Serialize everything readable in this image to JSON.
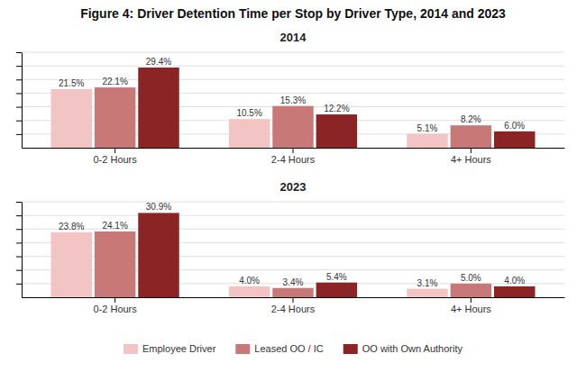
{
  "title": "Figure 4: Driver Detention Time per Stop by Driver Type, 2014 and 2023",
  "chart_data": [
    {
      "type": "bar",
      "title": "2014",
      "categories": [
        "0-2 Hours",
        "2-4 Hours",
        "4+ Hours"
      ],
      "series": [
        {
          "name": "Employee Driver",
          "color": "#f2c4c4",
          "values": [
            21.5,
            10.5,
            5.1
          ],
          "value_labels": [
            "21.5%",
            "10.5%",
            "5.1%"
          ]
        },
        {
          "name": "Leased OO / IC",
          "color": "#c97878",
          "values": [
            22.1,
            15.3,
            8.2
          ],
          "value_labels": [
            "22.1%",
            "15.3%",
            "8.2%"
          ]
        },
        {
          "name": "OO with Own Authority",
          "color": "#8b2525",
          "values": [
            29.4,
            12.2,
            6.0
          ],
          "value_labels": [
            "29.4%",
            "12.2%",
            "6.0%"
          ]
        }
      ],
      "ylim": [
        0,
        35
      ],
      "yticks": [
        5,
        10,
        15,
        20,
        25,
        30,
        35
      ],
      "grid": true,
      "data_labels": true,
      "tick_labels": "x",
      "legend": "bottom"
    },
    {
      "type": "bar",
      "title": "2023",
      "categories": [
        "0-2 Hours",
        "2-4 Hours",
        "4+ Hours"
      ],
      "series": [
        {
          "name": "Employee Driver",
          "color": "#f2c4c4",
          "values": [
            23.8,
            4.0,
            3.1
          ],
          "value_labels": [
            "23.8%",
            "4.0%",
            "3.1%"
          ]
        },
        {
          "name": "Leased OO / IC",
          "color": "#c97878",
          "values": [
            24.1,
            3.4,
            5.0
          ],
          "value_labels": [
            "24.1%",
            "3.4%",
            "5.0%"
          ]
        },
        {
          "name": "OO with Own Authority",
          "color": "#8b2525",
          "values": [
            30.9,
            5.4,
            4.0
          ],
          "value_labels": [
            "30.9%",
            "5.4%",
            "4.0%"
          ]
        }
      ],
      "ylim": [
        0,
        35
      ],
      "yticks": [
        5,
        10,
        15,
        20,
        25,
        30,
        35
      ],
      "grid": true,
      "data_labels": true,
      "tick_labels": "x"
    }
  ]
}
